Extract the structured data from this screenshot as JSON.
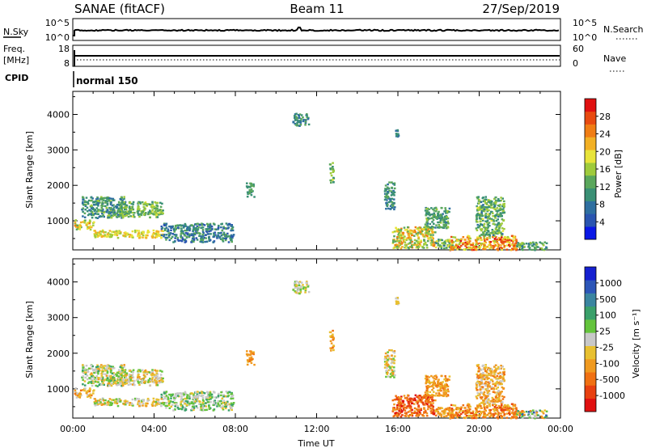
{
  "header": {
    "station": "SANAE (fitACF)",
    "beam": "Beam 11",
    "date": "27/Sep/2019"
  },
  "noise_panel": {
    "left_label": "N.Sky",
    "left_ticks": [
      "10^5",
      "10^0"
    ],
    "right_label": "N.Search",
    "right_ticks": [
      "10^5",
      "10^0"
    ]
  },
  "freq_panel": {
    "left_label_top": "Freq.",
    "left_label_unit": "[MHz]",
    "left_ticks": [
      "18",
      "8"
    ],
    "right_label": "Nave",
    "right_ticks": [
      "60",
      "0"
    ]
  },
  "cpid": {
    "label": "CPID",
    "mode": "normal 150"
  },
  "xaxis": {
    "label": "Time UT",
    "ticks": [
      "00:00",
      "04:00",
      "08:00",
      "12:00",
      "16:00",
      "20:00",
      "00:00"
    ]
  },
  "colors": {
    "power": [
      "#0a18e6",
      "#2a55b0",
      "#2f6fa0",
      "#3a9075",
      "#5aa75c",
      "#9fcb3c",
      "#e8e43a",
      "#f2b024",
      "#f07d14",
      "#e84a10",
      "#e01010"
    ],
    "velocity": [
      "#1520d0",
      "#2c56b8",
      "#3a85a0",
      "#3aa06a",
      "#64c43c",
      "#c8c8c8",
      "#e8c030",
      "#f09a20",
      "#f07012",
      "#e84010",
      "#e01010"
    ]
  },
  "chart_data": [
    {
      "type": "heatmap",
      "title": "Power",
      "ylabel": "Slant Range [km]",
      "xlabel": "",
      "xlim_hours": [
        0,
        24
      ],
      "ylim": [
        180,
        4650
      ],
      "yticks": [
        1000,
        2000,
        3000,
        4000
      ],
      "colorbar": {
        "label": "Power [dB]",
        "ticks": [
          4,
          8,
          12,
          16,
          20,
          24,
          28
        ],
        "range": [
          0,
          32
        ]
      },
      "blobs": [
        {
          "t0": 0.05,
          "t1": 1.0,
          "r0": 780,
          "r1": 1050,
          "v0": 14,
          "v1": 24
        },
        {
          "t0": 1.0,
          "t1": 4.4,
          "r0": 540,
          "r1": 760,
          "v0": 16,
          "v1": 22
        },
        {
          "t0": 4.3,
          "t1": 7.9,
          "r0": 420,
          "r1": 950,
          "v0": 4,
          "v1": 14
        },
        {
          "t0": 0.4,
          "t1": 2.6,
          "r0": 1100,
          "r1": 1700,
          "v0": 6,
          "v1": 16
        },
        {
          "t0": 2.2,
          "t1": 4.4,
          "r0": 1120,
          "r1": 1560,
          "v0": 10,
          "v1": 18
        },
        {
          "t0": 8.5,
          "t1": 8.9,
          "r0": 1700,
          "r1": 2100,
          "v0": 8,
          "v1": 14
        },
        {
          "t0": 15.3,
          "t1": 15.8,
          "r0": 1350,
          "r1": 2150,
          "v0": 6,
          "v1": 14
        },
        {
          "t0": 15.7,
          "t1": 17.8,
          "r0": 250,
          "r1": 850,
          "v0": 12,
          "v1": 26
        },
        {
          "t0": 17.8,
          "t1": 19.0,
          "r0": 250,
          "r1": 500,
          "v0": 8,
          "v1": 20
        },
        {
          "t0": 18.5,
          "t1": 21.8,
          "r0": 200,
          "r1": 600,
          "v0": 16,
          "v1": 30
        },
        {
          "t0": 19.8,
          "t1": 21.2,
          "r0": 600,
          "r1": 1700,
          "v0": 8,
          "v1": 18
        },
        {
          "t0": 21.8,
          "t1": 23.3,
          "r0": 200,
          "r1": 420,
          "v0": 8,
          "v1": 16
        },
        {
          "t0": 17.3,
          "t1": 18.5,
          "r0": 800,
          "r1": 1400,
          "v0": 8,
          "v1": 16
        },
        {
          "t0": 10.8,
          "t1": 11.6,
          "r0": 3700,
          "r1": 4050,
          "v0": 6,
          "v1": 14
        },
        {
          "t0": 15.85,
          "t1": 16.0,
          "r0": 3350,
          "r1": 3600,
          "v0": 6,
          "v1": 12
        },
        {
          "t0": 12.6,
          "t1": 12.8,
          "r0": 2100,
          "r1": 2700,
          "v0": 10,
          "v1": 18
        }
      ]
    },
    {
      "type": "heatmap",
      "title": "Velocity",
      "ylabel": "Slant Range [km]",
      "xlabel": "Time UT",
      "xlim_hours": [
        0,
        24
      ],
      "ylim": [
        180,
        4650
      ],
      "yticks": [
        1000,
        2000,
        3000,
        4000
      ],
      "colorbar": {
        "label": "Velocity [m s⁻¹]",
        "ticks": [
          "1000",
          "500",
          "100",
          "25",
          "-25",
          "-100",
          "-500",
          "-1000"
        ]
      },
      "blobs": [
        {
          "t0": 0.05,
          "t1": 1.0,
          "r0": 780,
          "r1": 1050,
          "v0": 5,
          "v1": 8
        },
        {
          "t0": 1.0,
          "t1": 4.4,
          "r0": 540,
          "r1": 760,
          "v0": 4,
          "v1": 7
        },
        {
          "t0": 4.3,
          "t1": 7.9,
          "r0": 420,
          "r1": 950,
          "v0": 3,
          "v1": 6
        },
        {
          "t0": 0.4,
          "t1": 2.6,
          "r0": 1100,
          "r1": 1700,
          "v0": 3,
          "v1": 7
        },
        {
          "t0": 2.2,
          "t1": 4.4,
          "r0": 1120,
          "r1": 1560,
          "v0": 4,
          "v1": 7
        },
        {
          "t0": 8.5,
          "t1": 8.9,
          "r0": 1700,
          "r1": 2100,
          "v0": 6,
          "v1": 8
        },
        {
          "t0": 15.3,
          "t1": 15.8,
          "r0": 1350,
          "r1": 2150,
          "v0": 4,
          "v1": 7
        },
        {
          "t0": 15.7,
          "t1": 17.8,
          "r0": 250,
          "r1": 850,
          "v0": 7,
          "v1": 10
        },
        {
          "t0": 17.8,
          "t1": 19.0,
          "r0": 250,
          "r1": 500,
          "v0": 6,
          "v1": 8
        },
        {
          "t0": 18.5,
          "t1": 21.8,
          "r0": 200,
          "r1": 600,
          "v0": 6,
          "v1": 9
        },
        {
          "t0": 19.8,
          "t1": 21.2,
          "r0": 600,
          "r1": 1700,
          "v0": 5,
          "v1": 8
        },
        {
          "t0": 21.8,
          "t1": 23.3,
          "r0": 200,
          "r1": 420,
          "v0": 1,
          "v1": 8
        },
        {
          "t0": 17.3,
          "t1": 18.5,
          "r0": 800,
          "r1": 1400,
          "v0": 6,
          "v1": 8
        },
        {
          "t0": 10.8,
          "t1": 11.6,
          "r0": 3700,
          "r1": 4050,
          "v0": 4,
          "v1": 6
        },
        {
          "t0": 15.85,
          "t1": 16.0,
          "r0": 3350,
          "r1": 3600,
          "v0": 5,
          "v1": 7
        },
        {
          "t0": 12.6,
          "t1": 12.8,
          "r0": 2100,
          "r1": 2700,
          "v0": 6,
          "v1": 8
        }
      ]
    }
  ]
}
